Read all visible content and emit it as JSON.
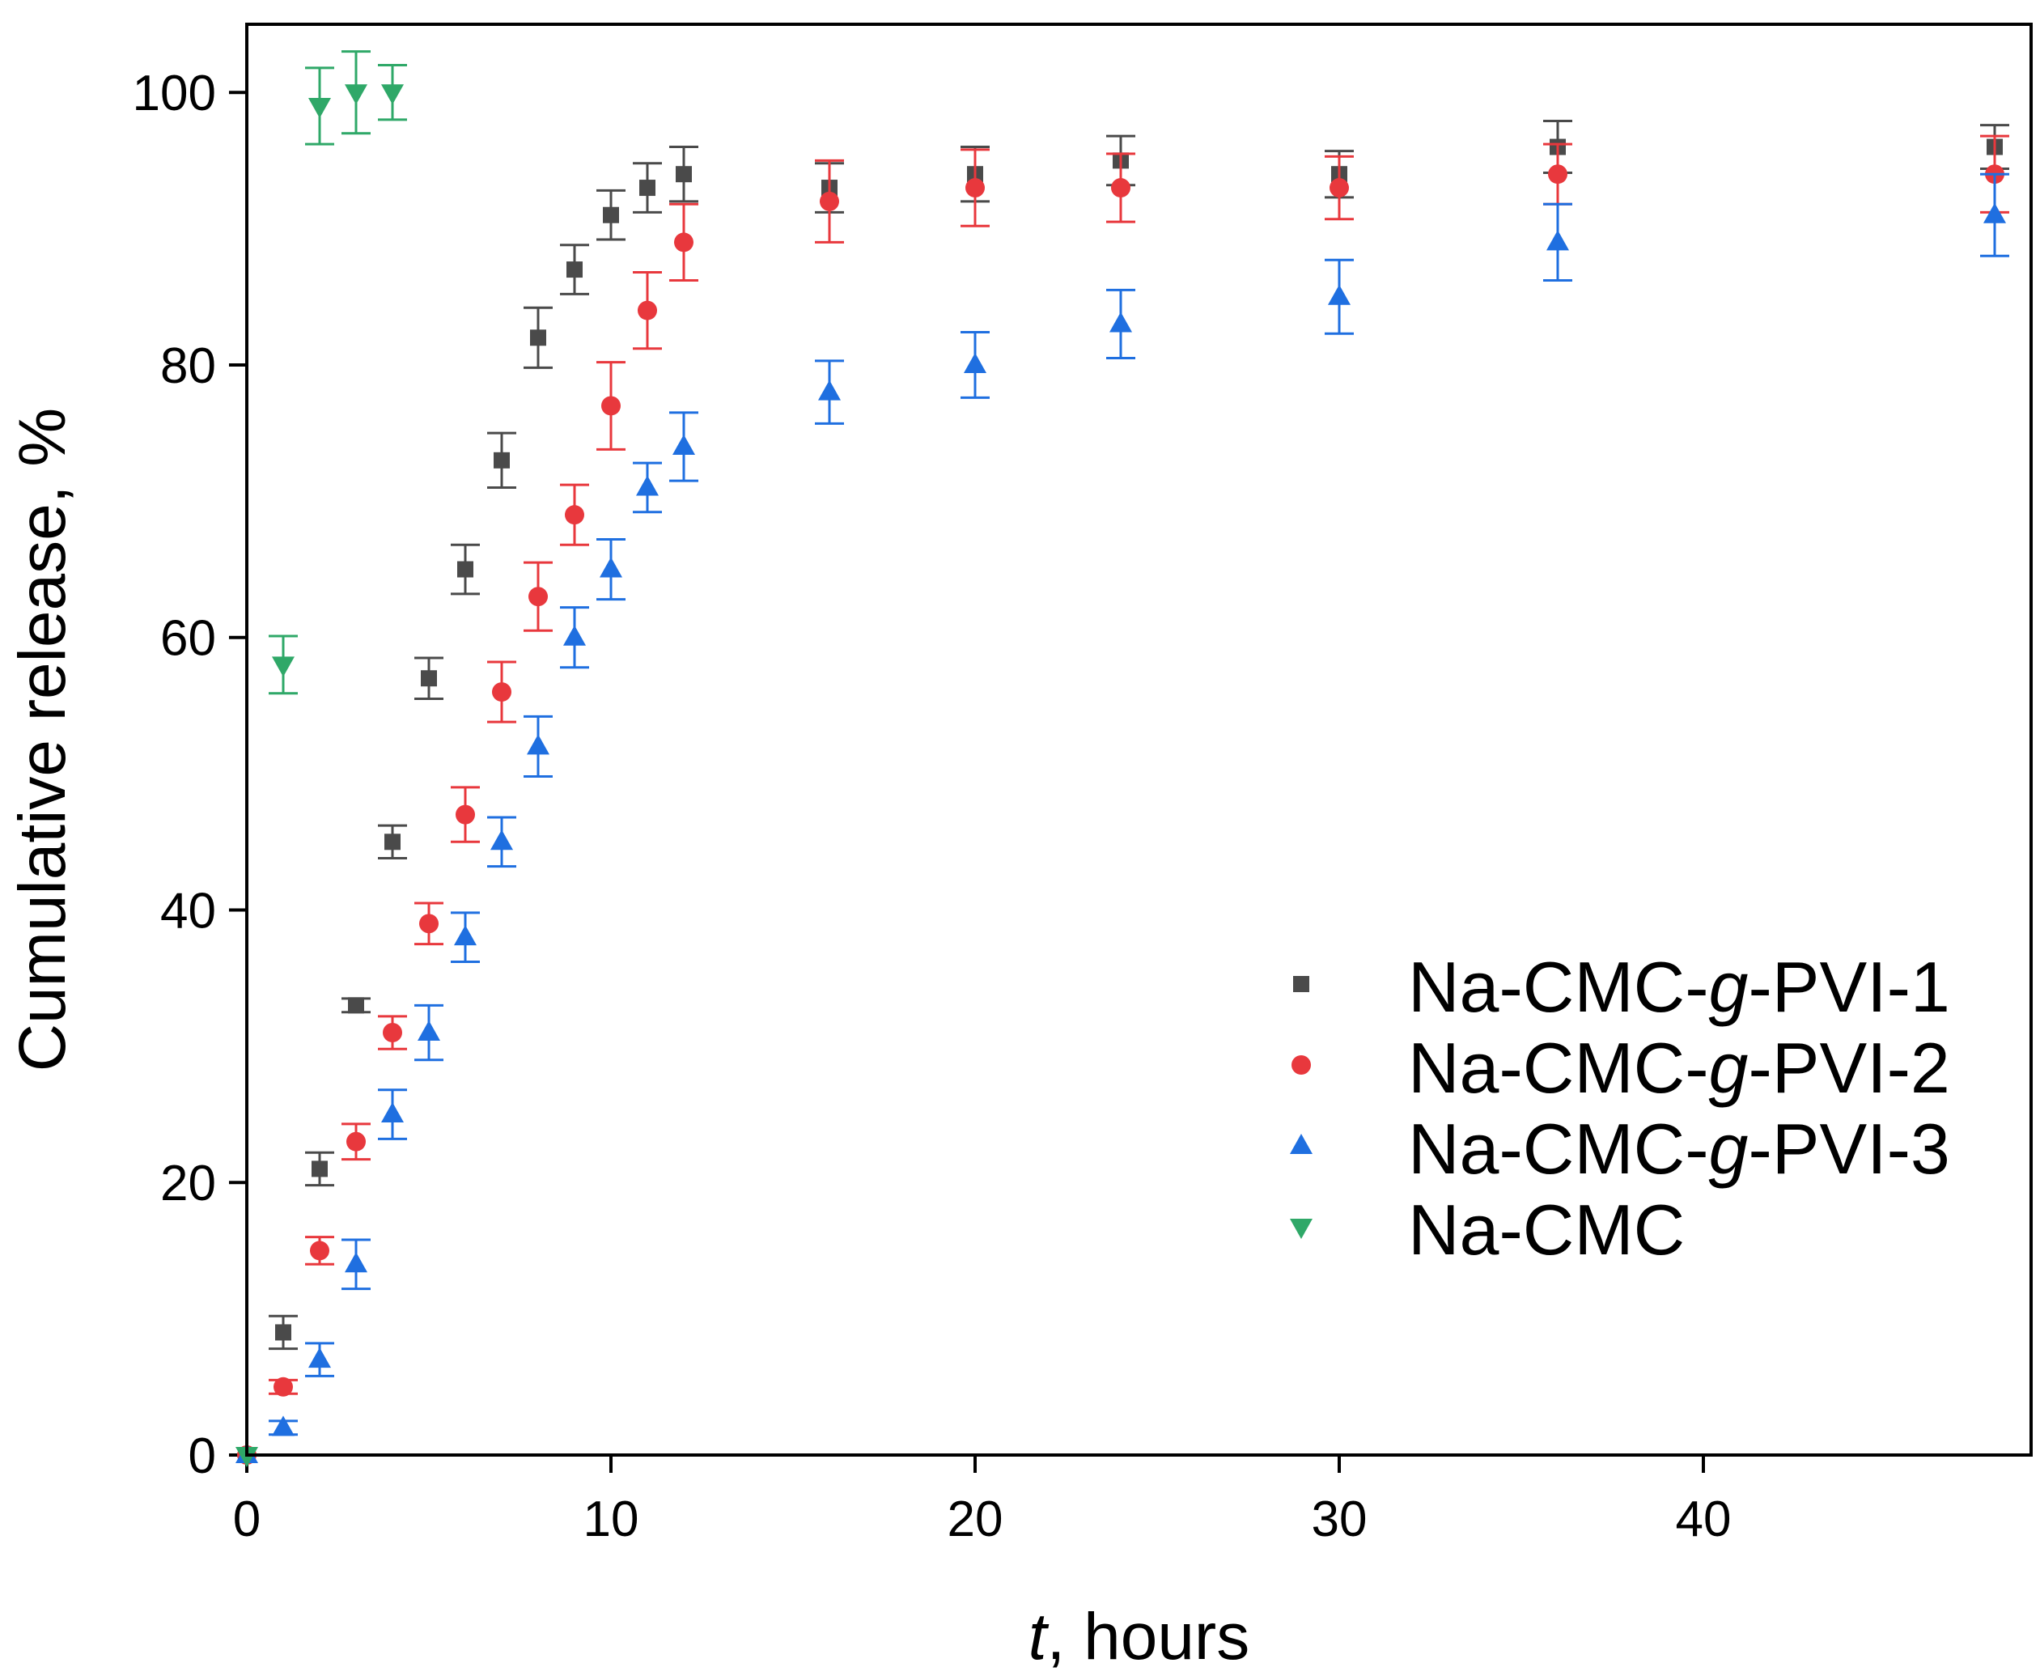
{
  "chart_data": {
    "type": "scatter",
    "title": "",
    "xlabel_italic": "t",
    "xlabel_rest": ", hours",
    "ylabel": "Cumulative release, %",
    "xlim": [
      0,
      49
    ],
    "ylim": [
      0,
      105
    ],
    "xticks": [
      0,
      10,
      20,
      30,
      40
    ],
    "yticks": [
      0,
      20,
      40,
      60,
      80,
      100
    ],
    "legend_position": "lower-right",
    "series": [
      {
        "name_prefix": "Na-CMC-",
        "name_italic": "g",
        "name_suffix": "-PVI-1",
        "marker": "square",
        "color": "#4a4a4a",
        "x": [
          0,
          1,
          2,
          3,
          4,
          5,
          6,
          7,
          8,
          9,
          10,
          11,
          12,
          16,
          20,
          24,
          30,
          36,
          48
        ],
        "y": [
          0,
          9,
          21,
          33,
          45,
          57,
          65,
          73,
          82,
          87,
          91,
          93,
          94,
          93,
          94,
          95,
          94,
          96,
          96
        ],
        "err": [
          0,
          1.2,
          1.2,
          0.5,
          1.2,
          1.5,
          1.8,
          2.0,
          2.2,
          1.8,
          1.8,
          1.8,
          2.0,
          1.8,
          2.0,
          1.8,
          1.7,
          1.9,
          1.6
        ]
      },
      {
        "name_prefix": "Na-CMC-",
        "name_italic": "g",
        "name_suffix": "-PVI-2",
        "marker": "circle",
        "color": "#e8383d",
        "x": [
          0,
          1,
          2,
          3,
          4,
          5,
          6,
          7,
          8,
          9,
          10,
          11,
          12,
          16,
          20,
          24,
          30,
          36,
          48
        ],
        "y": [
          0,
          5,
          15,
          23,
          31,
          39,
          47,
          56,
          63,
          69,
          77,
          84,
          89,
          92,
          93,
          93,
          93,
          94,
          94
        ],
        "err": [
          0,
          0.5,
          1.0,
          1.3,
          1.2,
          1.5,
          2.0,
          2.2,
          2.5,
          2.2,
          3.2,
          2.8,
          2.8,
          3.0,
          2.8,
          2.5,
          2.3,
          2.2,
          2.8
        ]
      },
      {
        "name_prefix": "Na-CMC-",
        "name_italic": "g",
        "name_suffix": "-PVI-3",
        "marker": "triangle-up",
        "color": "#1f6fe0",
        "x": [
          0,
          1,
          2,
          3,
          4,
          5,
          6,
          7,
          8,
          9,
          10,
          11,
          12,
          16,
          20,
          24,
          30,
          36,
          48
        ],
        "y": [
          0,
          2,
          7,
          14,
          25,
          31,
          38,
          45,
          52,
          60,
          65,
          71,
          74,
          78,
          80,
          83,
          85,
          89,
          91
        ],
        "err": [
          0,
          0.5,
          1.2,
          1.8,
          1.8,
          2.0,
          1.8,
          1.8,
          2.2,
          2.2,
          2.2,
          1.8,
          2.5,
          2.3,
          2.4,
          2.5,
          2.7,
          2.8,
          3.0
        ]
      },
      {
        "name_prefix": "Na-CMC",
        "name_italic": "",
        "name_suffix": "",
        "marker": "triangle-down",
        "color": "#2fa868",
        "x": [
          0,
          1,
          2,
          3,
          4
        ],
        "y": [
          0,
          58,
          99,
          100,
          100
        ],
        "err": [
          0,
          2.1,
          2.8,
          3.0,
          2.0
        ]
      }
    ]
  }
}
